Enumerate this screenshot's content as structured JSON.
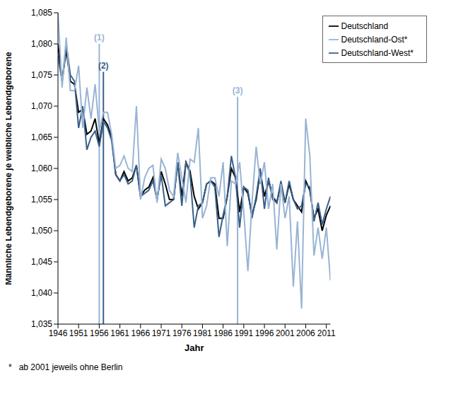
{
  "chart_data": {
    "type": "line",
    "x_label": "Jahr",
    "y_label": "Männliche Lebendgeborene je weibliche Lebendgeborene",
    "footnote": "*   ab 2001 jeweils ohne Berlin",
    "x": [
      1946,
      1947,
      1948,
      1949,
      1950,
      1951,
      1952,
      1953,
      1954,
      1955,
      1956,
      1957,
      1958,
      1959,
      1960,
      1961,
      1962,
      1963,
      1964,
      1965,
      1966,
      1967,
      1968,
      1969,
      1970,
      1971,
      1972,
      1973,
      1974,
      1975,
      1976,
      1977,
      1978,
      1979,
      1980,
      1981,
      1982,
      1983,
      1984,
      1985,
      1986,
      1987,
      1988,
      1989,
      1990,
      1991,
      1992,
      1993,
      1994,
      1995,
      1996,
      1997,
      1998,
      1999,
      2000,
      2001,
      2002,
      2003,
      2004,
      2005,
      2006,
      2007,
      2008,
      2009,
      2010,
      2011,
      2012
    ],
    "series": [
      {
        "name": "Deutschland",
        "color": "#000000",
        "values": [
          1.08,
          1.074,
          1.079,
          1.074,
          1.0735,
          1.069,
          1.0695,
          1.0655,
          1.066,
          1.068,
          1.064,
          1.068,
          1.067,
          1.065,
          1.059,
          1.058,
          1.0595,
          1.058,
          1.0585,
          1.0605,
          1.0555,
          1.0565,
          1.057,
          1.0585,
          1.055,
          1.0595,
          1.0575,
          1.055,
          1.055,
          1.061,
          1.0555,
          1.061,
          1.0595,
          1.0555,
          1.0535,
          1.0545,
          1.0575,
          1.058,
          1.0575,
          1.052,
          1.052,
          1.0555,
          1.06,
          1.0585,
          1.053,
          1.057,
          1.056,
          1.0525,
          1.055,
          1.0595,
          1.0555,
          1.058,
          1.0555,
          1.0545,
          1.0575,
          1.0545,
          1.0575,
          1.055,
          1.054,
          1.053,
          1.058,
          1.0565,
          1.052,
          1.0535,
          1.05,
          1.0525,
          1.054
        ]
      },
      {
        "name": "Deutschland-West*",
        "color": "#3a5f8a",
        "values": [
          1.078,
          1.074,
          1.08,
          1.075,
          1.074,
          1.0665,
          1.07,
          1.063,
          1.065,
          1.066,
          1.0635,
          1.0675,
          1.0665,
          1.0645,
          1.059,
          1.058,
          1.059,
          1.0575,
          1.058,
          1.0605,
          1.0555,
          1.056,
          1.0565,
          1.058,
          1.055,
          1.059,
          1.054,
          1.0545,
          1.055,
          1.061,
          1.054,
          1.061,
          1.059,
          1.0505,
          1.054,
          1.0545,
          1.0575,
          1.058,
          1.057,
          1.049,
          1.0525,
          1.0555,
          1.062,
          1.0585,
          1.0505,
          1.057,
          1.0565,
          1.052,
          1.0555,
          1.06,
          1.0535,
          1.0585,
          1.055,
          1.0545,
          1.058,
          1.0545,
          1.058,
          1.055,
          1.0535,
          1.054,
          1.0575,
          1.057,
          1.0515,
          1.0545,
          1.051,
          1.0535,
          1.0555
        ]
      },
      {
        "name": "Deutschland-Ost*",
        "color": "#98b4d4",
        "values": [
          1.085,
          1.073,
          1.081,
          1.0725,
          1.0725,
          1.0765,
          1.0665,
          1.073,
          1.068,
          1.0735,
          1.066,
          1.069,
          1.069,
          1.0655,
          1.06,
          1.0605,
          1.062,
          1.06,
          1.0595,
          1.07,
          1.055,
          1.0585,
          1.06,
          1.0605,
          1.0545,
          1.0615,
          1.06,
          1.0565,
          1.0555,
          1.0625,
          1.0585,
          1.0545,
          1.0615,
          1.061,
          1.0665,
          1.052,
          1.054,
          1.0585,
          1.0585,
          1.0555,
          1.061,
          1.0475,
          1.058,
          1.0575,
          1.061,
          1.053,
          1.0435,
          1.0545,
          1.0635,
          1.0575,
          1.061,
          1.0535,
          1.0575,
          1.047,
          1.0575,
          1.052,
          1.0555,
          1.041,
          1.0515,
          1.0375,
          1.068,
          1.062,
          1.046,
          1.0505,
          1.0455,
          1.0505,
          1.042
        ]
      }
    ],
    "annotations": [
      {
        "label": "(1)",
        "x": 1956,
        "y": 1.08,
        "color": "#98b4d4"
      },
      {
        "label": "(2)",
        "x": 1957,
        "y": 1.0755,
        "color": "#3a5f8a"
      },
      {
        "label": "(3)",
        "x": 1989.5,
        "y": 1.0715,
        "color": "#98b4d4"
      }
    ],
    "xlim": [
      1946,
      2012
    ],
    "xticks": [
      1946,
      1951,
      1956,
      1961,
      1966,
      1971,
      1976,
      1981,
      1986,
      1991,
      1996,
      2001,
      2006,
      2011
    ],
    "ylim": [
      1.035,
      1.085
    ],
    "yticks": [
      {
        "value": 1.035,
        "label": "1,035"
      },
      {
        "value": 1.04,
        "label": "1,040"
      },
      {
        "value": 1.045,
        "label": "1,045"
      },
      {
        "value": 1.05,
        "label": "1,050"
      },
      {
        "value": 1.055,
        "label": "1,055"
      },
      {
        "value": 1.06,
        "label": "1,060"
      },
      {
        "value": 1.065,
        "label": "1,065"
      },
      {
        "value": 1.07,
        "label": "1,070"
      },
      {
        "value": 1.075,
        "label": "1,075"
      },
      {
        "value": 1.08,
        "label": "1,080"
      },
      {
        "value": 1.085,
        "label": "1,085"
      }
    ],
    "grid": false,
    "legend": "top-right"
  }
}
